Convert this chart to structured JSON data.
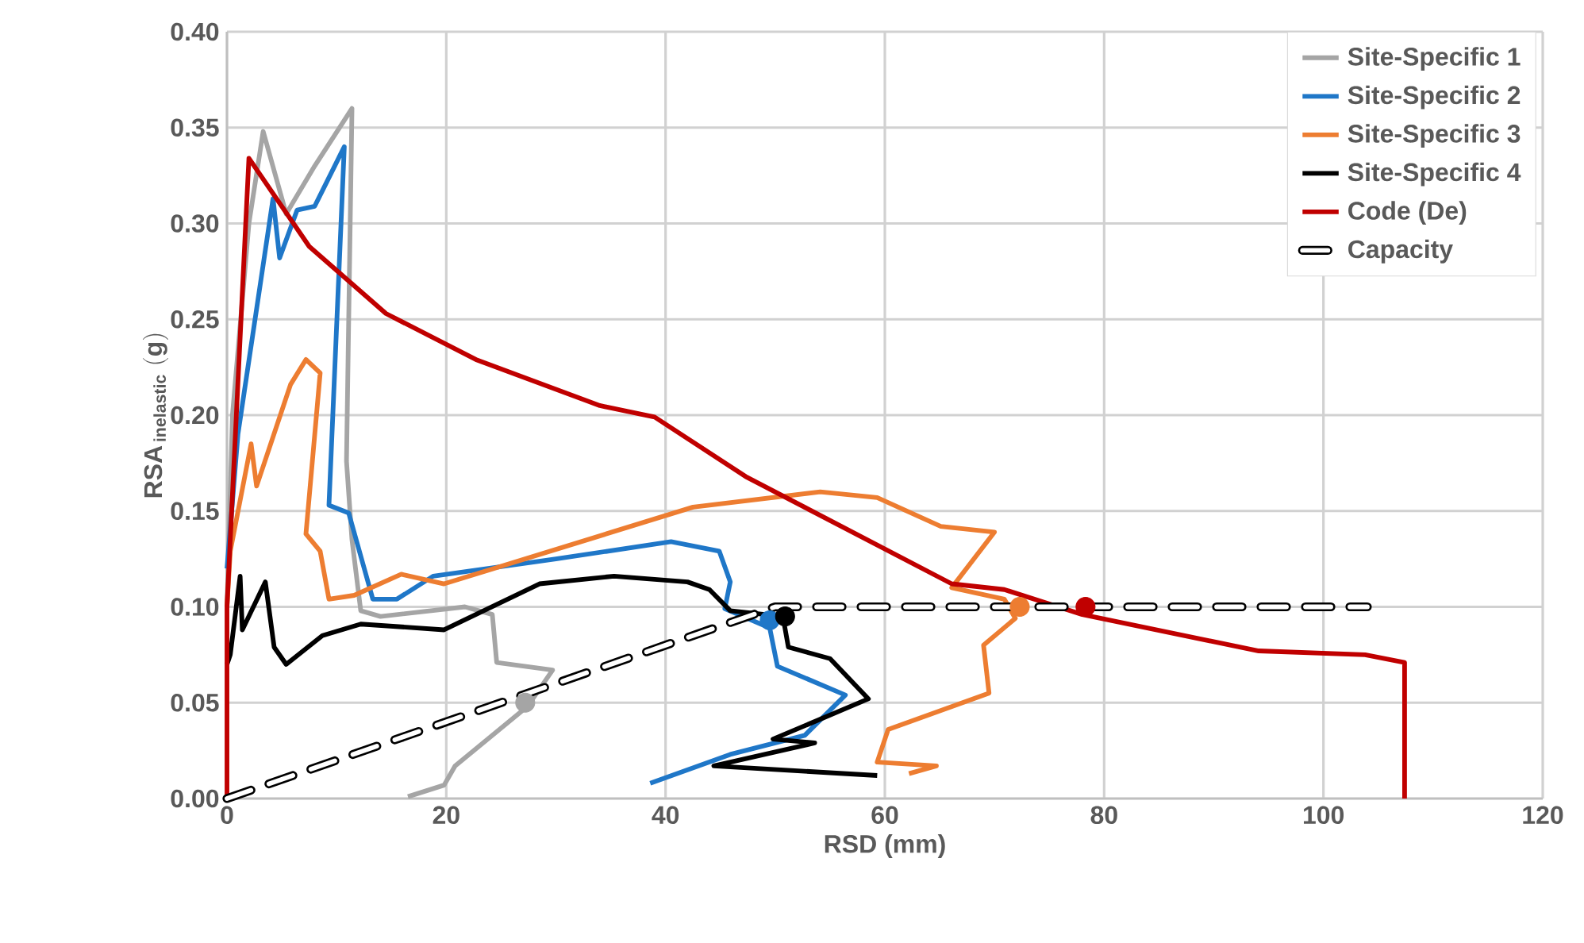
{
  "chart_data": {
    "type": "line",
    "xlabel": "RSD (mm)",
    "ylabel": "\\mathbf{RSA}_{\\,\\mathbf{inelastic}}\\ \\mathbf{(g)}",
    "xlim": [
      0,
      120
    ],
    "ylim": [
      0,
      0.4
    ],
    "xticks": [
      0,
      20,
      40,
      60,
      80,
      100,
      120
    ],
    "yticks": [
      {
        "value": 0,
        "label": "0.00"
      },
      {
        "value": 0.05,
        "label": "0.05"
      },
      {
        "value": 0.1,
        "label": "0.10"
      },
      {
        "value": 0.15,
        "label": "0.15"
      },
      {
        "value": 0.2,
        "label": "0.20"
      },
      {
        "value": 0.25,
        "label": "0.25"
      },
      {
        "value": 0.3,
        "label": "0.30"
      },
      {
        "value": 0.35,
        "label": "0.35"
      },
      {
        "value": 0.4,
        "label": "0.40"
      }
    ],
    "grid": true,
    "legend": "top right",
    "series": [
      {
        "name": "Site-Specific 1",
        "color": "#a5a5a5",
        "x": [
          0,
          0.5,
          2,
          3.3,
          5.4,
          8,
          11.4,
          10.9,
          11.4,
          12.2,
          14,
          21.7,
          24.2,
          24.6,
          29.7,
          27.4,
          20.8,
          19.8,
          16.5
        ],
        "values": [
          0.1,
          0.2,
          0.3,
          0.348,
          0.305,
          0.33,
          0.36,
          0.176,
          0.135,
          0.098,
          0.095,
          0.1,
          0.096,
          0.071,
          0.067,
          0.048,
          0.017,
          0.007,
          0.001
        ]
      },
      {
        "name": "Site-Specific 2",
        "color": "#1f77c8",
        "x": [
          0,
          1,
          4.2,
          4.8,
          6.4,
          8,
          10.7,
          9.3,
          11.1,
          13.3,
          15.5,
          18.8,
          30,
          40.5,
          44.9,
          45.9,
          45.4,
          49.5,
          50.2,
          56.4,
          52.7,
          45.9,
          38.6
        ],
        "values": [
          0.12,
          0.19,
          0.313,
          0.282,
          0.307,
          0.309,
          0.34,
          0.153,
          0.149,
          0.104,
          0.104,
          0.116,
          0.125,
          0.134,
          0.129,
          0.113,
          0.099,
          0.089,
          0.069,
          0.054,
          0.033,
          0.023,
          0.008
        ]
      },
      {
        "name": "Site-Specific 3",
        "color": "#ed7d31",
        "x": [
          0,
          0.3,
          2.2,
          2.7,
          5.8,
          7.2,
          8.5,
          7.2,
          8.5,
          9.3,
          11.6,
          15.9,
          19.8,
          42.5,
          54.1,
          59.3,
          65.1,
          70,
          66.1,
          70.9,
          71.9,
          69,
          69.5,
          60.3,
          59.3,
          64.7,
          62.2
        ],
        "values": [
          0.1,
          0.129,
          0.185,
          0.163,
          0.216,
          0.229,
          0.222,
          0.138,
          0.129,
          0.104,
          0.106,
          0.117,
          0.112,
          0.152,
          0.16,
          0.157,
          0.142,
          0.139,
          0.11,
          0.104,
          0.094,
          0.08,
          0.055,
          0.036,
          0.019,
          0.017,
          0.013
        ]
      },
      {
        "name": "Site-Specific 4",
        "color": "#000000",
        "x": [
          0,
          0.3,
          1.2,
          1.4,
          3.5,
          4.3,
          5.4,
          8.7,
          12.2,
          19.8,
          28.5,
          35.3,
          42,
          44,
          45.9,
          50.7,
          51.2,
          55,
          58.5,
          49.8,
          53.6,
          44.4,
          59.3
        ],
        "values": [
          0.07,
          0.075,
          0.116,
          0.088,
          0.113,
          0.079,
          0.07,
          0.085,
          0.091,
          0.088,
          0.112,
          0.116,
          0.113,
          0.109,
          0.098,
          0.095,
          0.079,
          0.073,
          0.052,
          0.031,
          0.029,
          0.017,
          0.012
        ]
      },
      {
        "name": "Code (De)",
        "color": "#c00000",
        "x": [
          0,
          0,
          2,
          7.5,
          14.5,
          22.7,
          34,
          39,
          47.3,
          66.1,
          70.9,
          78,
          94.1,
          103.8,
          107.4,
          107.4
        ],
        "values": [
          0,
          0.1,
          0.334,
          0.288,
          0.253,
          0.229,
          0.205,
          0.199,
          0.168,
          0.112,
          0.109,
          0.096,
          0.077,
          0.075,
          0.071,
          0
        ]
      },
      {
        "name": "Capacity",
        "color": "#000000",
        "line_style": "dashed",
        "x": [
          0,
          50,
          104
        ],
        "values": [
          0,
          0.1,
          0.1
        ]
      },
      {
        "type": "scatter",
        "marker": "circle",
        "x": [
          27.2,
          49.5,
          50.9,
          72.3,
          78.3
        ],
        "values": [
          0.05,
          0.093,
          0.095,
          0.1,
          0.1
        ],
        "colors": [
          "#a5a5a5",
          "#1f77c8",
          "#000000",
          "#ed7d31",
          "#c00000"
        ]
      }
    ]
  }
}
